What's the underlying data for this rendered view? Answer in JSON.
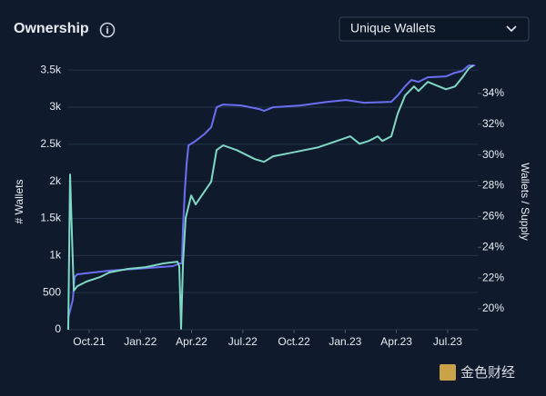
{
  "header": {
    "title": "Ownership",
    "dropdown": "Unique Wallets"
  },
  "watermark": "金色财经",
  "chart_data": {
    "type": "line",
    "y_label": "# Wallets",
    "y2_label": "Wallets / Supply",
    "xlim": [
      2021.648,
      2023.647
    ],
    "xticks": [
      {
        "value": 2021.75,
        "label": "Oct.21"
      },
      {
        "value": 2022.0,
        "label": "Jan.22"
      },
      {
        "value": 2022.25,
        "label": "Apr.22"
      },
      {
        "value": 2022.5,
        "label": "Jul.22"
      },
      {
        "value": 2022.75,
        "label": "Oct.22"
      },
      {
        "value": 2023.0,
        "label": "Jan.23"
      },
      {
        "value": 2023.25,
        "label": "Apr.23"
      },
      {
        "value": 2023.5,
        "label": "Jul.23"
      }
    ],
    "ylim": [
      0,
      3600
    ],
    "yticks": [
      0,
      500,
      {
        "value": 1000,
        "label": "1k"
      },
      {
        "value": 1500,
        "label": "1.5k"
      },
      {
        "value": 2000,
        "label": "2k"
      },
      {
        "value": 2500,
        "label": "2.5k"
      },
      {
        "value": 3000,
        "label": "3k"
      },
      {
        "value": 3500,
        "label": "3.5k"
      }
    ],
    "y2lim": [
      18.64,
      36.0
    ],
    "y2ticks": [
      {
        "value": 20,
        "label": "20%"
      },
      {
        "value": 22,
        "label": "22%"
      },
      {
        "value": 24,
        "label": "24%"
      },
      {
        "value": 26,
        "label": "26%"
      },
      {
        "value": 28,
        "label": "28%"
      },
      {
        "value": 30,
        "label": "30%"
      },
      {
        "value": 32,
        "label": "32%"
      },
      {
        "value": 34,
        "label": "34%"
      }
    ],
    "grid": true,
    "series": [
      {
        "color": "#6a6ff2",
        "axis": "y",
        "x": [
          2021.648,
          2021.67,
          2021.679,
          2021.692,
          2021.848,
          2021.981,
          2022.159,
          2022.194,
          2022.203,
          2022.208,
          2022.217,
          2022.226,
          2022.235,
          2022.27,
          2022.315,
          2022.346,
          2022.372,
          2022.404,
          2022.492,
          2022.581,
          2022.604,
          2022.648,
          2022.781,
          2022.914,
          2023.003,
          2023.092,
          2023.225,
          2023.256,
          2023.292,
          2023.323,
          2023.358,
          2023.403,
          2023.492,
          2023.536,
          2023.572,
          2023.603,
          2023.634
        ],
        "values": [
          159,
          404,
          710,
          747,
          796,
          820,
          857,
          894,
          894,
          1383,
          1873,
          2240,
          2485,
          2546,
          2644,
          2729,
          2999,
          3035,
          3023,
          2974,
          2950,
          2999,
          3023,
          3072,
          3097,
          3060,
          3072,
          3158,
          3280,
          3366,
          3342,
          3403,
          3415,
          3464,
          3488,
          3562,
          3562
        ]
      },
      {
        "color": "#7fd8c4",
        "axis": "y2",
        "x": [
          2021.648,
          2021.657,
          2021.666,
          2021.675,
          2021.692,
          2021.737,
          2021.803,
          2021.848,
          2021.937,
          2022.026,
          2022.114,
          2022.181,
          2022.19,
          2022.199,
          2022.208,
          2022.221,
          2022.248,
          2022.27,
          2022.315,
          2022.346,
          2022.372,
          2022.404,
          2022.47,
          2022.559,
          2022.604,
          2022.648,
          2022.737,
          2022.87,
          2022.959,
          2023.025,
          2023.07,
          2023.115,
          2023.159,
          2023.181,
          2023.225,
          2023.256,
          2023.292,
          2023.314,
          2023.336,
          2023.358,
          2023.403,
          2023.492,
          2023.536,
          2023.572,
          2023.603,
          2023.625
        ],
        "values": [
          18.64,
          28.73,
          24.72,
          21.18,
          21.47,
          21.77,
          22.06,
          22.36,
          22.59,
          22.71,
          22.95,
          23.06,
          22.77,
          18.7,
          22.95,
          25.9,
          27.37,
          26.78,
          27.67,
          28.26,
          30.32,
          30.62,
          30.32,
          29.73,
          29.55,
          29.91,
          30.14,
          30.5,
          30.91,
          31.21,
          30.73,
          30.91,
          31.21,
          30.91,
          31.21,
          32.68,
          33.86,
          34.16,
          34.45,
          34.16,
          34.75,
          34.27,
          34.45,
          35.04,
          35.63,
          35.81
        ]
      }
    ]
  }
}
